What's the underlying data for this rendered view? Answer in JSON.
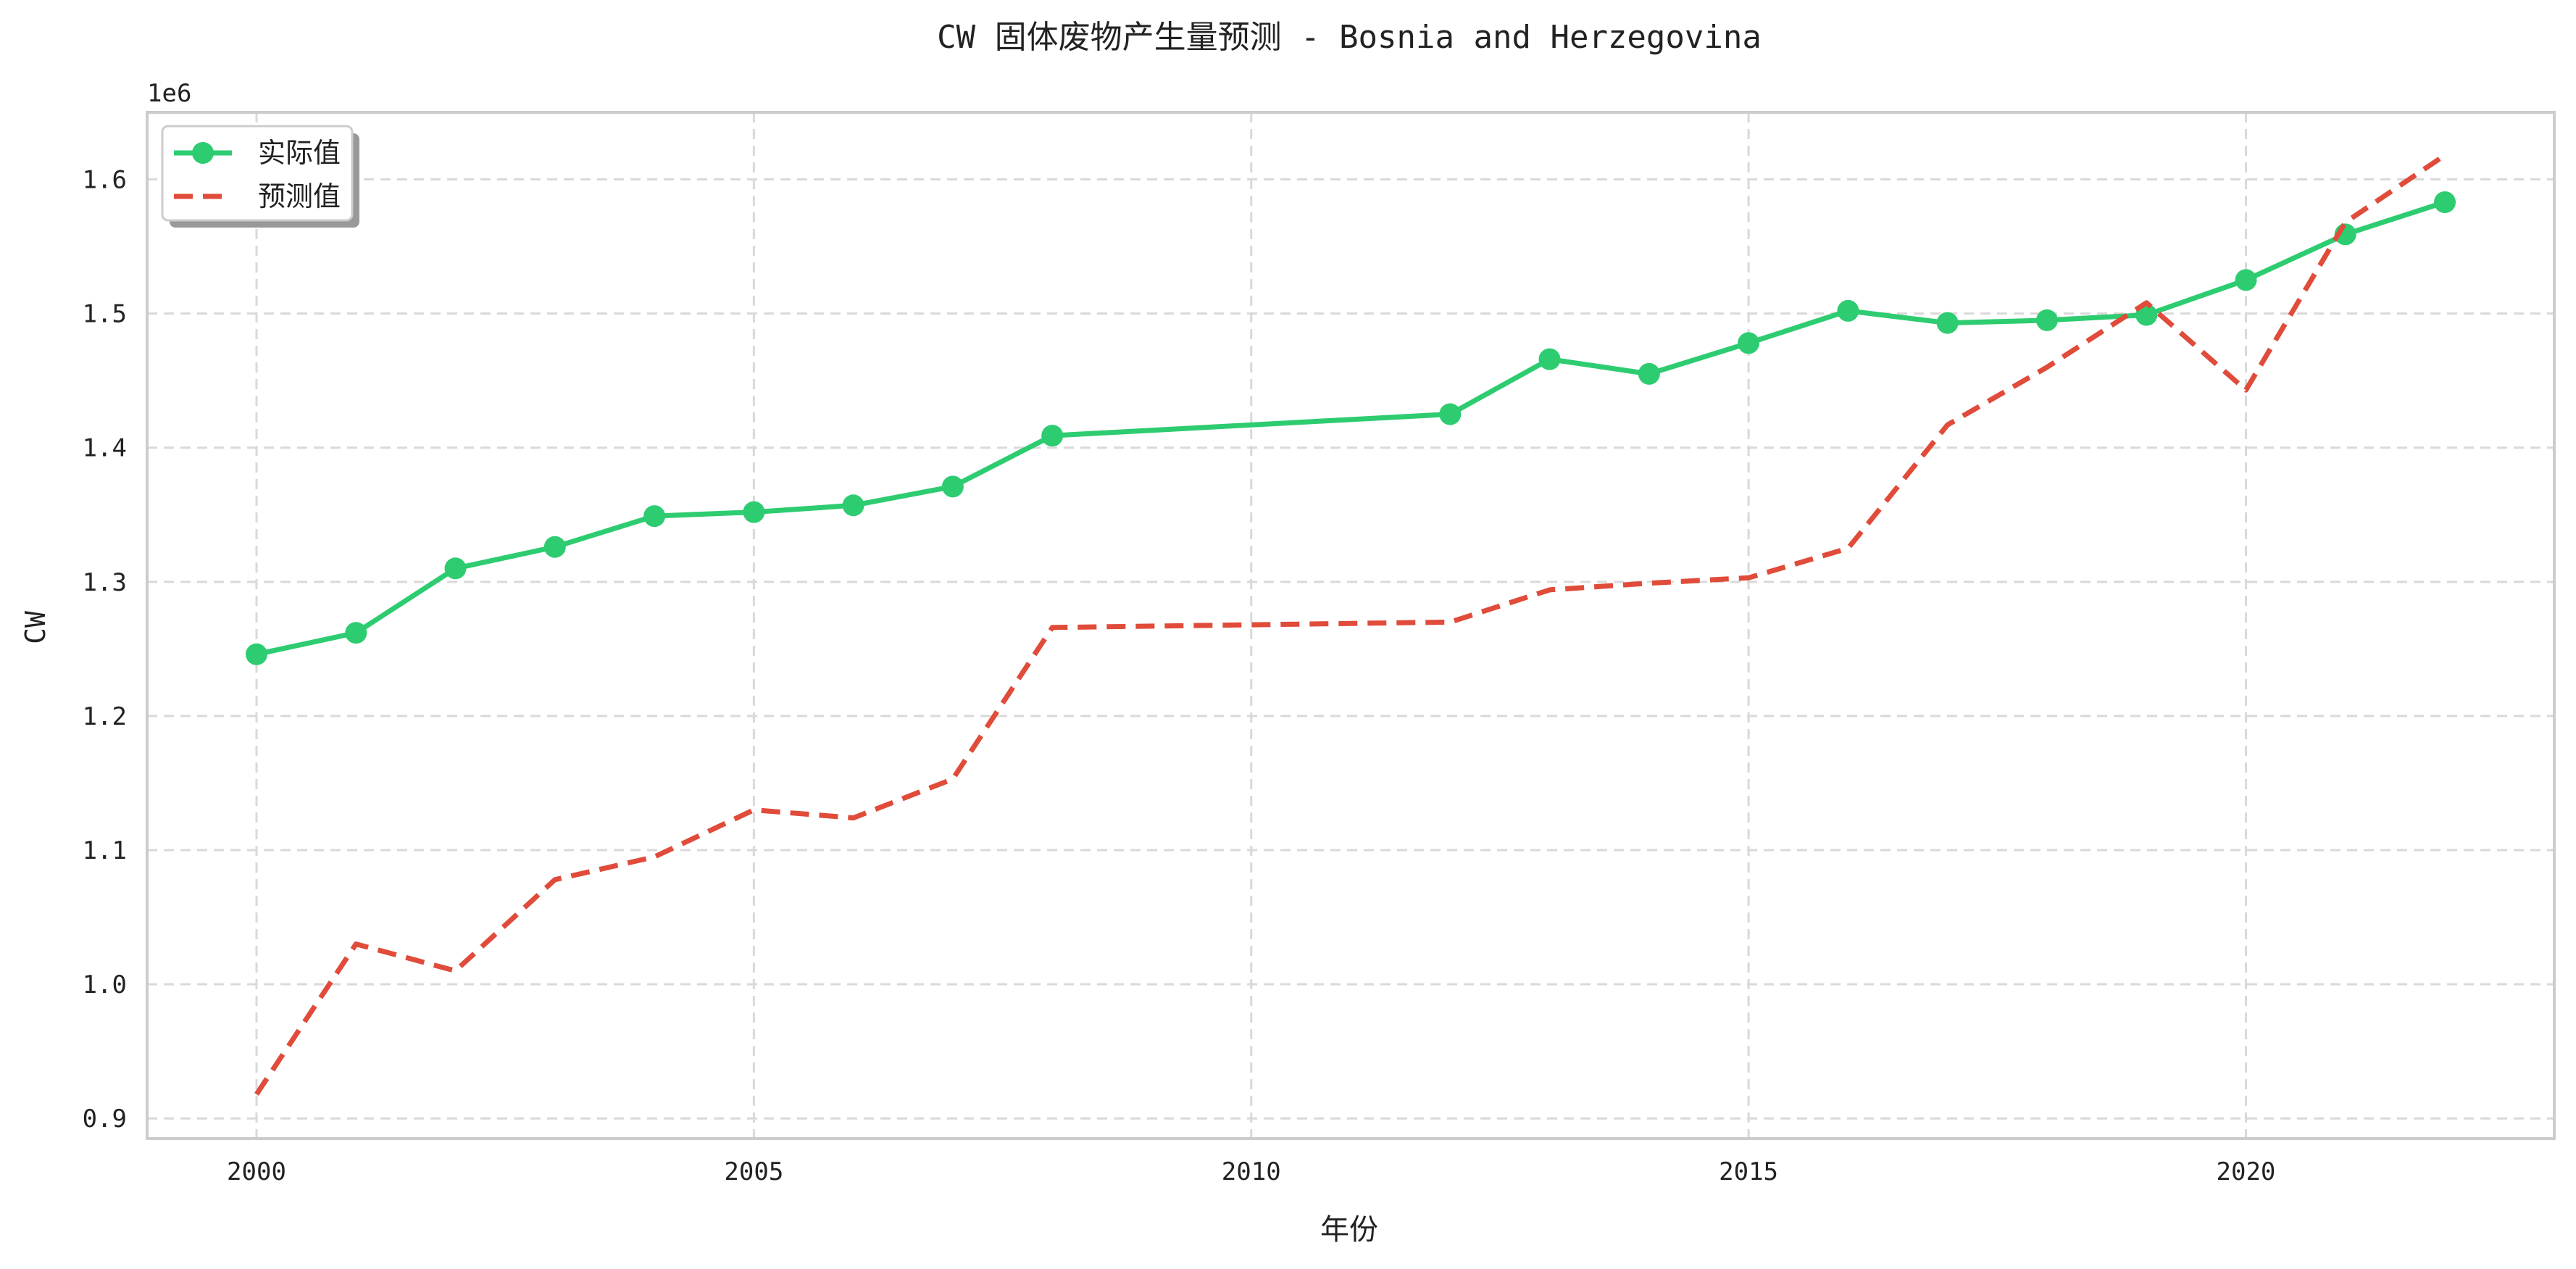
{
  "chart_data": {
    "type": "line",
    "title": "CW 固体废物产生量预测 - Bosnia and Herzegovina",
    "xlabel": "年份",
    "ylabel": "CW",
    "y_offset_label": "1e6",
    "xlim": [
      1998.9,
      2023.1
    ],
    "ylim": [
      0.885,
      1.65
    ],
    "x_ticks": [
      2000,
      2005,
      2010,
      2015,
      2020
    ],
    "y_ticks": [
      0.9,
      1.0,
      1.1,
      1.2,
      1.3,
      1.4,
      1.5,
      1.6
    ],
    "y_tick_labels": [
      "0.9",
      "1.0",
      "1.1",
      "1.2",
      "1.3",
      "1.4",
      "1.5",
      "1.6"
    ],
    "grid": true,
    "legend_position": "top-left",
    "series": [
      {
        "name": "实际值",
        "color": "#2ecc71",
        "style": "solid-markers",
        "points": [
          [
            2000,
            1.246
          ],
          [
            2001,
            1.262
          ],
          [
            2002,
            1.31
          ],
          [
            2003,
            1.326
          ],
          [
            2004,
            1.349
          ],
          [
            2005,
            1.352
          ],
          [
            2006,
            1.357
          ],
          [
            2007,
            1.371
          ],
          [
            2008,
            1.409
          ],
          [
            2012,
            1.425
          ],
          [
            2013,
            1.466
          ],
          [
            2014,
            1.455
          ],
          [
            2015,
            1.478
          ],
          [
            2016,
            1.502
          ],
          [
            2017,
            1.493
          ],
          [
            2018,
            1.495
          ],
          [
            2019,
            1.499
          ],
          [
            2020,
            1.525
          ],
          [
            2021,
            1.559
          ],
          [
            2022,
            1.583
          ]
        ]
      },
      {
        "name": "预测值",
        "color": "#e04b3a",
        "style": "dashed",
        "points": [
          [
            2000,
            0.918
          ],
          [
            2001,
            1.03
          ],
          [
            2002,
            1.01
          ],
          [
            2003,
            1.078
          ],
          [
            2004,
            1.095
          ],
          [
            2005,
            1.13
          ],
          [
            2006,
            1.124
          ],
          [
            2007,
            1.153
          ],
          [
            2008,
            1.266
          ],
          [
            2012,
            1.27
          ],
          [
            2013,
            1.294
          ],
          [
            2014,
            1.299
          ],
          [
            2015,
            1.303
          ],
          [
            2016,
            1.325
          ],
          [
            2017,
            1.417
          ],
          [
            2018,
            1.46
          ],
          [
            2019,
            1.508
          ],
          [
            2020,
            1.443
          ],
          [
            2021,
            1.568
          ],
          [
            2022,
            1.618
          ]
        ]
      }
    ]
  }
}
